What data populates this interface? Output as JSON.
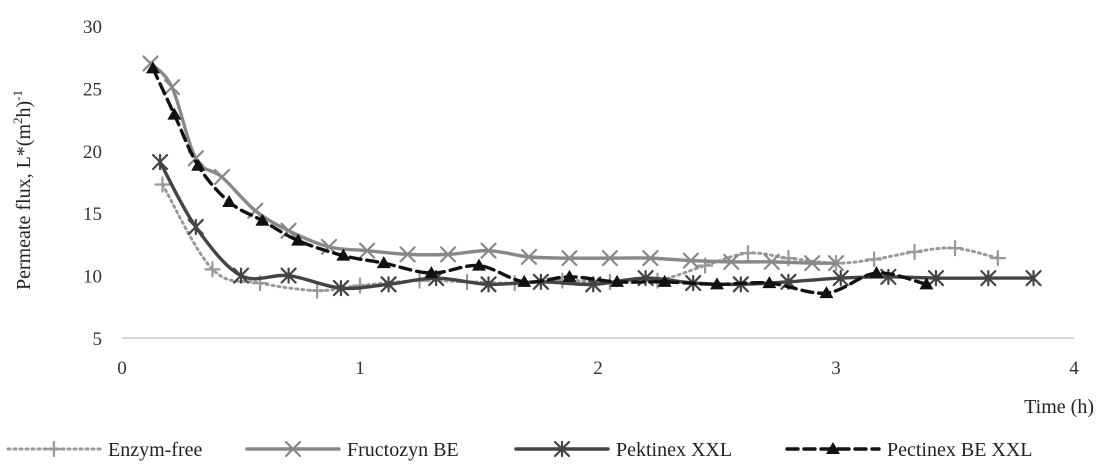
{
  "chart_data": {
    "type": "line",
    "title": "",
    "xlabel": "Time (h)",
    "ylabel": "Permeate flux,  L*(m",
    "ylabel_sup1": "2",
    "ylabel_mid": "h)",
    "ylabel_sup2": "-1",
    "xlim": [
      0,
      4
    ],
    "ylim": [
      5,
      30
    ],
    "xticks": [
      "0",
      "1",
      "2",
      "3",
      "4"
    ],
    "yticks": [
      "5",
      "10",
      "15",
      "20",
      "25",
      "30"
    ],
    "grid": false,
    "legend_position": "bottom",
    "series": [
      {
        "name": "Enzym-free",
        "color": "#999999",
        "line_style": "dotted",
        "marker": "plus",
        "x": [
          0.17,
          0.38,
          0.58,
          0.82,
          1.0,
          1.25,
          1.45,
          1.65,
          1.85,
          2.05,
          2.25,
          2.45,
          2.63,
          2.8,
          3.0,
          3.16,
          3.33,
          3.5,
          3.68
        ],
        "y": [
          17.3,
          10.5,
          9.4,
          8.8,
          9.2,
          9.6,
          9.5,
          9.4,
          9.6,
          9.5,
          9.6,
          10.8,
          11.8,
          11.4,
          11.0,
          11.3,
          11.9,
          12.2,
          11.4
        ]
      },
      {
        "name": "Fructozyn BE",
        "color": "#888888",
        "line_style": "solid",
        "marker": "x",
        "x": [
          0.12,
          0.21,
          0.31,
          0.42,
          0.56,
          0.7,
          0.87,
          1.03,
          1.2,
          1.37,
          1.54,
          1.71,
          1.88,
          2.05,
          2.22,
          2.39,
          2.56,
          2.73,
          2.9,
          3.0
        ],
        "y": [
          27.0,
          25.1,
          19.4,
          17.9,
          15.2,
          13.6,
          12.3,
          12.0,
          11.7,
          11.7,
          12.0,
          11.5,
          11.4,
          11.4,
          11.4,
          11.2,
          11.1,
          11.1,
          11.0,
          11.0
        ]
      },
      {
        "name": "Pektinex XXL",
        "color": "#444444",
        "line_style": "solid",
        "marker": "asterisk",
        "x": [
          0.16,
          0.31,
          0.5,
          0.7,
          0.92,
          1.12,
          1.32,
          1.54,
          1.76,
          1.98,
          2.2,
          2.4,
          2.6,
          2.8,
          3.02,
          3.22,
          3.42,
          3.64,
          3.83
        ],
        "y": [
          19.1,
          13.9,
          10.0,
          10.0,
          9.0,
          9.3,
          9.8,
          9.3,
          9.5,
          9.3,
          9.8,
          9.4,
          9.3,
          9.5,
          9.8,
          9.9,
          9.8,
          9.8,
          9.8
        ]
      },
      {
        "name": "Pectinex BE XXL",
        "color": "#111111",
        "line_style": "dashed",
        "marker": "triangle",
        "x": [
          0.13,
          0.22,
          0.32,
          0.45,
          0.59,
          0.74,
          0.93,
          1.1,
          1.3,
          1.5,
          1.69,
          1.88,
          2.08,
          2.28,
          2.5,
          2.72,
          2.96,
          3.17,
          3.38
        ],
        "y": [
          26.6,
          22.9,
          18.8,
          15.9,
          14.4,
          12.8,
          11.6,
          11.0,
          10.2,
          10.8,
          9.5,
          9.9,
          9.5,
          9.5,
          9.3,
          9.4,
          8.6,
          10.2,
          9.3
        ]
      }
    ]
  }
}
